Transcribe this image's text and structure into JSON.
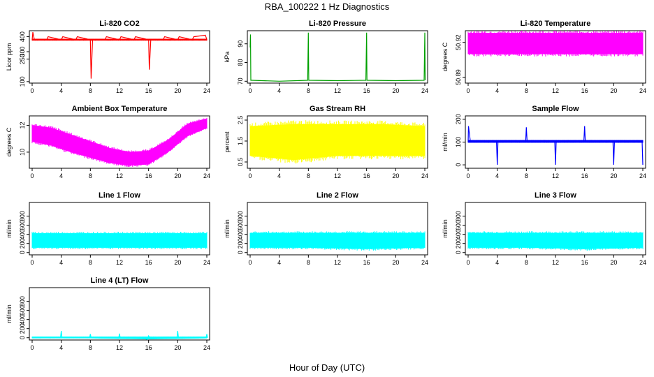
{
  "title": "RBA_100222  1 Hz Diagnostics",
  "xlabel": "Hour of Day (UTC)",
  "chart_data": [
    {
      "type": "line",
      "title": "Li-820 CO2",
      "ylabel": "Licor ppm",
      "color": "#ff0000",
      "xlim": [
        0,
        24
      ],
      "ylim": [
        90,
        440
      ],
      "xticks": [
        0,
        4,
        8,
        12,
        16,
        20,
        24
      ],
      "yticks": [
        100,
        250,
        300,
        400
      ],
      "band": {
        "lo": [
          375,
          375
        ],
        "hi": [
          385,
          385
        ]
      },
      "series": [
        {
          "x": [
            0,
            0.1,
            0.3,
            2,
            2.2,
            4,
            4.2,
            6,
            6.2,
            8,
            8.1,
            8.3,
            10,
            10.2,
            12,
            12.2,
            14,
            14.2,
            16,
            16.1,
            16.3,
            18,
            18.2,
            20,
            20.2,
            22,
            22.2,
            23.8,
            24
          ],
          "y": [
            380,
            430,
            382,
            380,
            400,
            380,
            400,
            380,
            400,
            380,
            120,
            381,
            380,
            400,
            380,
            400,
            380,
            400,
            380,
            180,
            382,
            380,
            400,
            380,
            400,
            380,
            400,
            410,
            382
          ]
        }
      ]
    },
    {
      "type": "line",
      "title": "Li-820 Pressure",
      "ylabel": "kPa",
      "color": "#00a000",
      "xlim": [
        0,
        24
      ],
      "ylim": [
        69,
        97
      ],
      "xticks": [
        0,
        4,
        8,
        12,
        16,
        20,
        24
      ],
      "yticks": [
        70,
        80,
        90
      ],
      "band": null,
      "series": [
        {
          "x": [
            0,
            0.05,
            0.1,
            0.2,
            4,
            7.9,
            8,
            8.05,
            8.1,
            12,
            15.9,
            16,
            16.05,
            16.1,
            20,
            23.9,
            24,
            24.05
          ],
          "y": [
            88,
            95,
            70.5,
            70.5,
            70,
            70.5,
            96,
            70.5,
            70.5,
            70.3,
            70.5,
            96,
            70.5,
            70.5,
            70.3,
            70.5,
            96,
            70.5
          ]
        }
      ]
    },
    {
      "type": "area",
      "title": "Li-820 Temperature",
      "ylabel": "degrees C",
      "color": "#ff00ff",
      "xlim": [
        0,
        24
      ],
      "ylim": [
        50.885,
        50.93
      ],
      "xticks": [
        0,
        4,
        8,
        12,
        16,
        20,
        24
      ],
      "yticks": [
        50.89,
        50.92
      ],
      "band": {
        "lo": [
          50.91,
          50.91
        ],
        "hi": [
          50.928,
          50.928
        ]
      },
      "series": []
    },
    {
      "type": "area",
      "title": "Ambient Box Temperature",
      "ylabel": "degrees C",
      "color": "#ff00ff",
      "xlim": [
        0,
        24
      ],
      "ylim": [
        8.8,
        12.7
      ],
      "xticks": [
        0,
        4,
        8,
        12,
        16,
        20,
        24
      ],
      "yticks": [
        10,
        12
      ],
      "band": {
        "lo": [
          10.8,
          10.5,
          10.0,
          9.6,
          9.2,
          9.0,
          9.1,
          10.0,
          11.2,
          11.8
        ],
        "hi": [
          12.0,
          11.8,
          11.3,
          10.8,
          10.3,
          10.0,
          10.1,
          10.9,
          12.1,
          12.5
        ]
      },
      "series": []
    },
    {
      "type": "area",
      "title": "Gas Stream RH",
      "ylabel": "percent",
      "color": "#ffff00",
      "xlim": [
        0,
        24
      ],
      "ylim": [
        0.2,
        2.7
      ],
      "xticks": [
        0,
        4,
        8,
        12,
        16,
        20,
        24
      ],
      "yticks": [
        0.5,
        1.5,
        2.5
      ],
      "band": {
        "lo": [
          0.8,
          0.6,
          0.8,
          0.8,
          0.8
        ],
        "hi": [
          2.2,
          2.3,
          2.3,
          2.3,
          2.2
        ]
      },
      "series": []
    },
    {
      "type": "line",
      "title": "Sample Flow",
      "ylabel": "ml/min",
      "color": "#0000ff",
      "xlim": [
        0,
        24
      ],
      "ylim": [
        -15,
        215
      ],
      "xticks": [
        0,
        4,
        8,
        12,
        16,
        20,
        24
      ],
      "yticks": [
        0,
        100,
        200
      ],
      "band": {
        "lo": [
          98,
          98
        ],
        "hi": [
          108,
          108
        ]
      },
      "series": [
        {
          "x": [
            0,
            0.05,
            0.3,
            3.9,
            4,
            4.1,
            7.9,
            8,
            8.1,
            11.9,
            12,
            12.1,
            15.9,
            16,
            16.1,
            19.9,
            20,
            20.1,
            23.9,
            24
          ],
          "y": [
            100,
            170,
            105,
            103,
            0,
            103,
            103,
            165,
            103,
            103,
            0,
            103,
            103,
            170,
            103,
            103,
            0,
            103,
            103,
            0
          ]
        }
      ]
    },
    {
      "type": "area",
      "title": "Line 1 Flow",
      "ylabel": "ml/min",
      "color": "#00ffff",
      "xlim": [
        0,
        24
      ],
      "ylim": [
        -50,
        1100
      ],
      "xticks": [
        0,
        4,
        8,
        12,
        16,
        20,
        24
      ],
      "yticks": [
        0,
        200,
        400,
        600,
        800
      ],
      "band": {
        "lo": [
          110,
          110
        ],
        "hi": [
          420,
          420
        ]
      },
      "series": []
    },
    {
      "type": "area",
      "title": "Line 2 Flow",
      "ylabel": "ml/min",
      "color": "#00ffff",
      "xlim": [
        0,
        24
      ],
      "ylim": [
        -50,
        1100
      ],
      "xticks": [
        0,
        4,
        8,
        12,
        16,
        20,
        24
      ],
      "yticks": [
        0,
        200,
        400,
        600,
        800
      ],
      "band": {
        "lo": [
          110,
          110,
          80,
          110
        ],
        "hi": [
          430,
          430,
          430,
          430
        ]
      },
      "series": []
    },
    {
      "type": "area",
      "title": "Line 3 Flow",
      "ylabel": "ml/min",
      "color": "#00ffff",
      "xlim": [
        0,
        24
      ],
      "ylim": [
        -50,
        1100
      ],
      "xticks": [
        0,
        4,
        8,
        12,
        16,
        20,
        24
      ],
      "yticks": [
        0,
        200,
        400,
        600,
        800
      ],
      "band": {
        "lo": [
          110,
          110,
          80,
          110
        ],
        "hi": [
          430,
          430,
          430,
          430
        ]
      },
      "series": []
    },
    {
      "type": "line",
      "title": "Line 4 (LT) Flow",
      "ylabel": "ml/min",
      "color": "#00ffff",
      "xlim": [
        0,
        24
      ],
      "ylim": [
        -50,
        1100
      ],
      "xticks": [
        0,
        4,
        8,
        12,
        16,
        20,
        24
      ],
      "yticks": [
        0,
        200,
        400,
        600,
        800
      ],
      "band": {
        "lo": [
          -10,
          -10,
          -30,
          -10
        ],
        "hi": [
          20,
          20,
          20,
          20
        ]
      },
      "series": [
        {
          "x": [
            0,
            3.9,
            4,
            4.1,
            7.9,
            8,
            8.1,
            11.9,
            12,
            12.1,
            15.5,
            15.8,
            16,
            16.2,
            19.9,
            20,
            20.1,
            23.9,
            24,
            24.1
          ],
          "y": [
            0,
            0,
            150,
            0,
            0,
            80,
            0,
            0,
            90,
            0,
            -20,
            -40,
            40,
            -20,
            0,
            150,
            0,
            0,
            80,
            0
          ]
        }
      ]
    }
  ]
}
